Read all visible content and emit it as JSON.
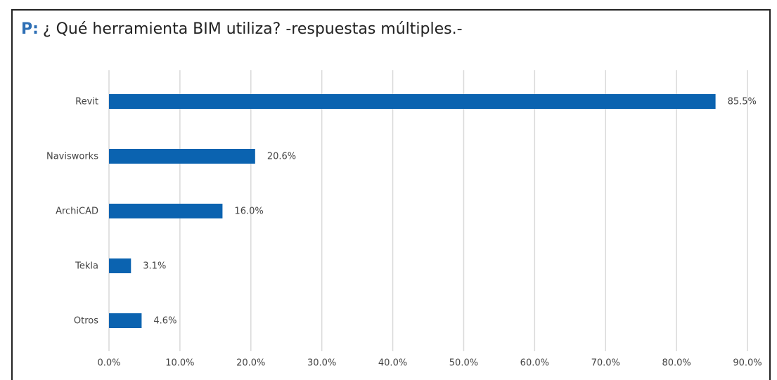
{
  "chart_data": {
    "type": "hbar",
    "title_prefix": "P:",
    "title": "¿ Qué herramienta BIM utiliza? -respuestas múltiples.-",
    "categories": [
      "Revit",
      "Navisworks",
      "ArchiCAD",
      "Tekla",
      "Otros"
    ],
    "values": [
      85.5,
      20.6,
      16.0,
      3.1,
      4.6
    ],
    "value_labels": [
      "85.5%",
      "20.6%",
      "16.0%",
      "3.1%",
      "4.6%"
    ],
    "color": "#0b63b0",
    "xlim": [
      0,
      90
    ],
    "xticks": [
      {
        "value": 0,
        "label": "0.0%"
      },
      {
        "value": 10,
        "label": "10.0%"
      },
      {
        "value": 20,
        "label": "20.0%"
      },
      {
        "value": 30,
        "label": "30.0%"
      },
      {
        "value": 40,
        "label": "40.0%"
      },
      {
        "value": 50,
        "label": "50.0%"
      },
      {
        "value": 60,
        "label": "60.0%"
      },
      {
        "value": 70,
        "label": "70.0%"
      },
      {
        "value": 80,
        "label": "80.0%"
      },
      {
        "value": 90,
        "label": "90.0%"
      }
    ],
    "grid": true
  }
}
